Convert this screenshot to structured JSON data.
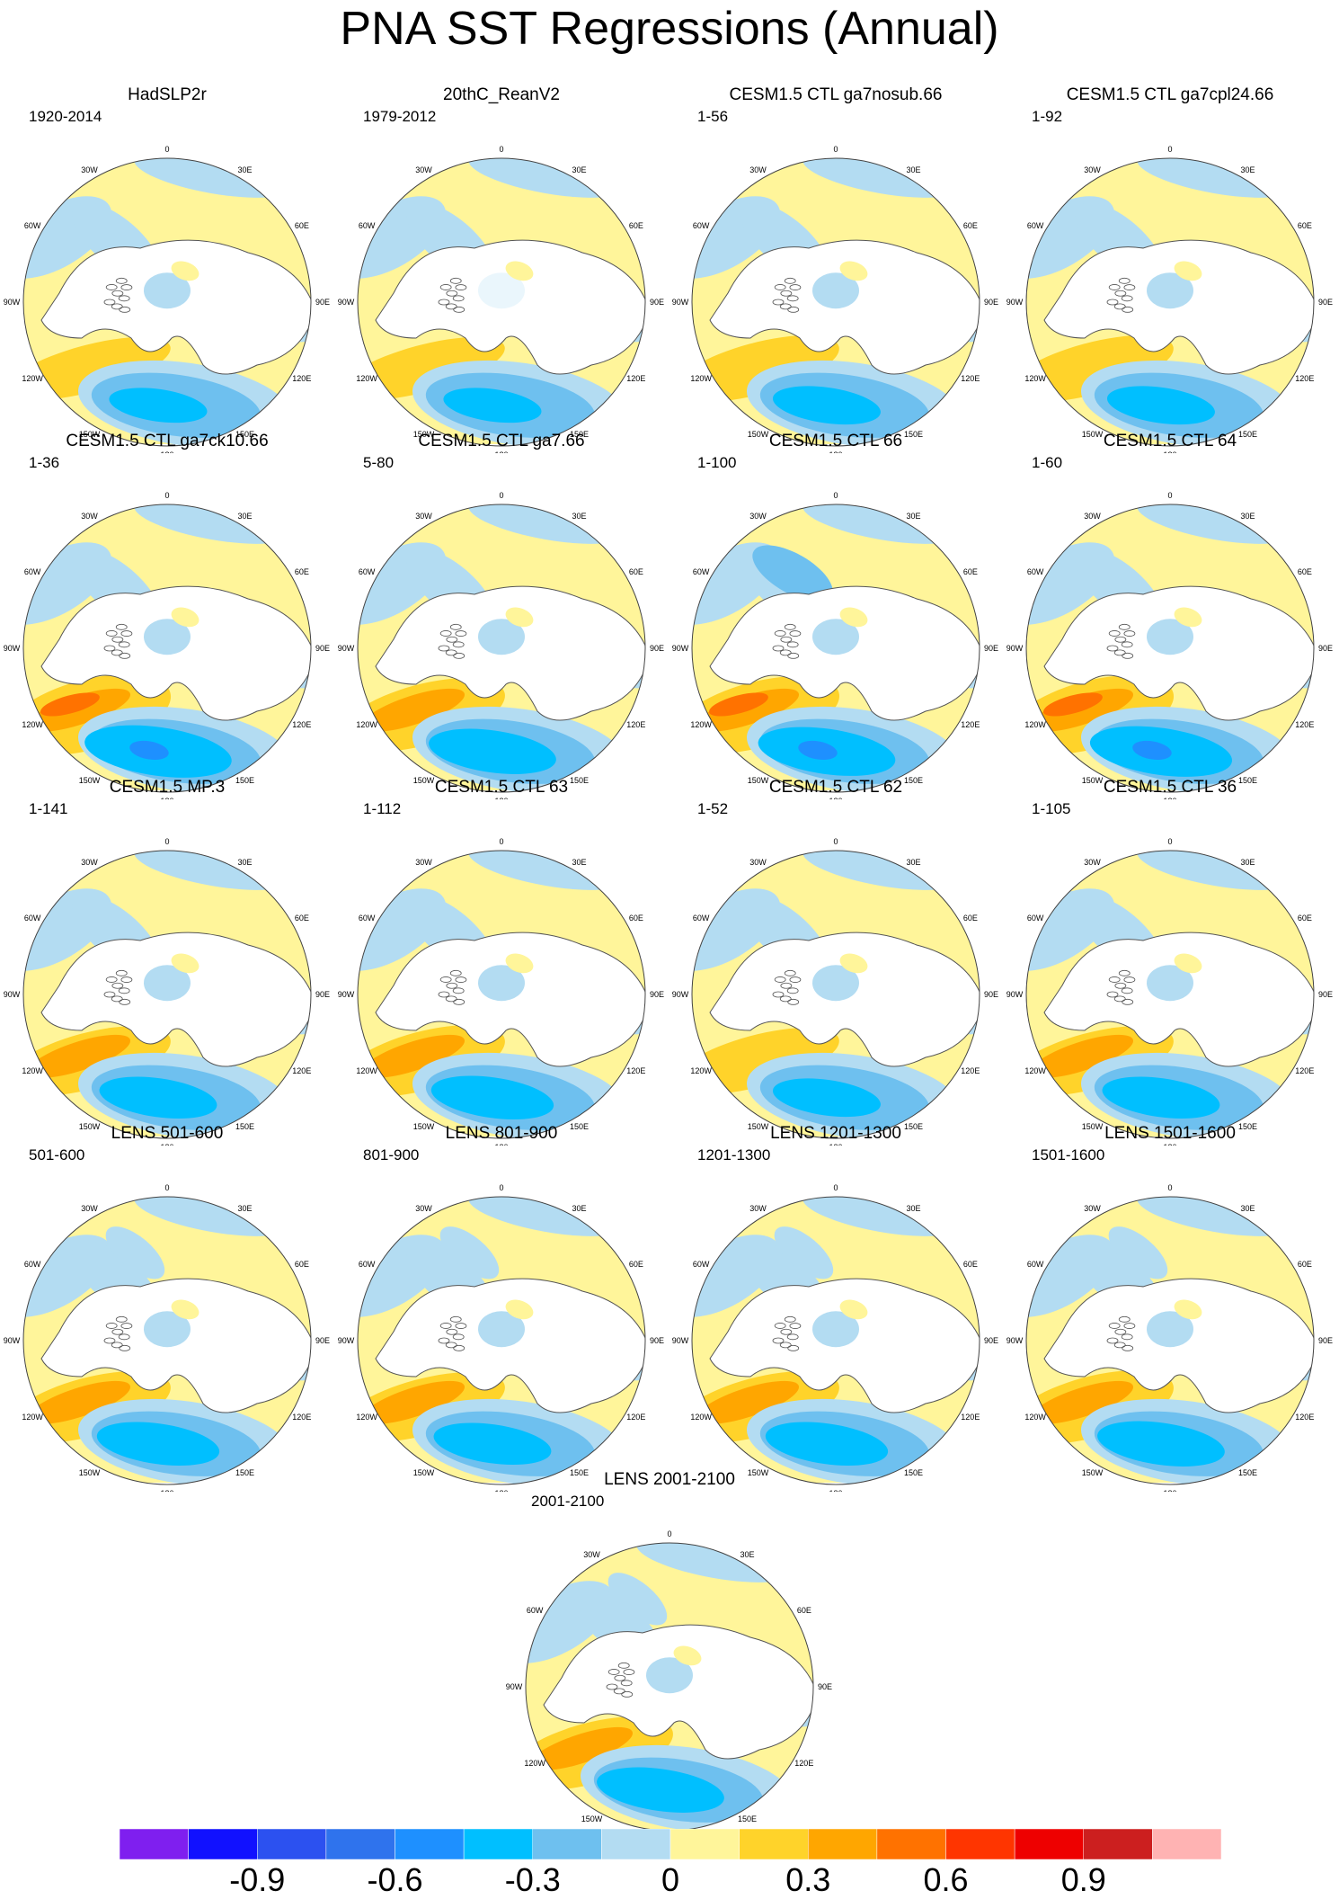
{
  "title": "PNA SST Regressions (Annual)",
  "longitude_labels": [
    "180",
    "150E",
    "120E",
    "90E",
    "60E",
    "30E",
    "0",
    "30W",
    "60W",
    "90W",
    "120W",
    "150W"
  ],
  "colors": {
    "land": "#ffffff",
    "coast": "#555555",
    "neg1": "#b3dcf2",
    "neg2": "#6ec0ef",
    "neg3": "#00bfff",
    "neg4": "#1e90ff",
    "pos1": "#fff59a",
    "pos2": "#ffd32a",
    "pos3": "#ffa600",
    "pos4": "#ff7200"
  },
  "colorbar": {
    "colors": [
      "#7f1fef",
      "#1111ff",
      "#2c51f0",
      "#2f73ed",
      "#1e90ff",
      "#00bfff",
      "#6ec0ef",
      "#b3dcf2",
      "#fff59a",
      "#ffd32a",
      "#ffa600",
      "#ff7200",
      "#ff3500",
      "#ee0000",
      "#cc1f1f",
      "#ffb3b3"
    ],
    "labels": [
      "-0.9",
      "-0.6",
      "-0.3",
      "0",
      "0.3",
      "0.6",
      "0.9"
    ]
  },
  "panels": [
    {
      "title": "HadSLP2r",
      "range": "1920-2014",
      "intensity": 1.0,
      "style": "obs"
    },
    {
      "title": "20thC_ReanV2",
      "range": "1979-2012",
      "intensity": 1.0,
      "style": "obs2"
    },
    {
      "title": "CESM1.5 CTL ga7nosub.66",
      "range": "1-56",
      "intensity": 1.1,
      "style": "model"
    },
    {
      "title": "CESM1.5 CTL ga7cpl24.66",
      "range": "1-92",
      "intensity": 1.1,
      "style": "model"
    },
    {
      "title": "CESM1.5 CTL ga7ck10.66",
      "range": "1-36",
      "intensity": 1.5,
      "style": "strong"
    },
    {
      "title": "CESM1.5 CTL ga7.66",
      "range": "5-80",
      "intensity": 1.3,
      "style": "model"
    },
    {
      "title": "CESM1.5 CTL 66",
      "range": "1-100",
      "intensity": 1.4,
      "style": "strongblue"
    },
    {
      "title": "CESM1.5 CTL 64",
      "range": "1-60",
      "intensity": 1.45,
      "style": "strong"
    },
    {
      "title": "CESM1.5 MP.3",
      "range": "1-141",
      "intensity": 1.2,
      "style": "model"
    },
    {
      "title": "CESM1.5 CTL 63",
      "range": "1-112",
      "intensity": 1.25,
      "style": "model"
    },
    {
      "title": "CESM1.5 CTL 62",
      "range": "1-52",
      "intensity": 1.1,
      "style": "model"
    },
    {
      "title": "CESM1.5 CTL 36",
      "range": "1-105",
      "intensity": 1.2,
      "style": "model"
    },
    {
      "title": "LENS 501-600",
      "range": "501-600",
      "intensity": 1.25,
      "style": "lens"
    },
    {
      "title": "LENS 801-900",
      "range": "801-900",
      "intensity": 1.2,
      "style": "lens"
    },
    {
      "title": "LENS 1201-1300",
      "range": "1201-1300",
      "intensity": 1.25,
      "style": "lens"
    },
    {
      "title": "LENS 1501-1600",
      "range": "1501-1600",
      "intensity": 1.3,
      "style": "lens"
    },
    {
      "title": "LENS 2001-2100",
      "range": "2001-2100",
      "intensity": 1.3,
      "style": "lens"
    }
  ]
}
